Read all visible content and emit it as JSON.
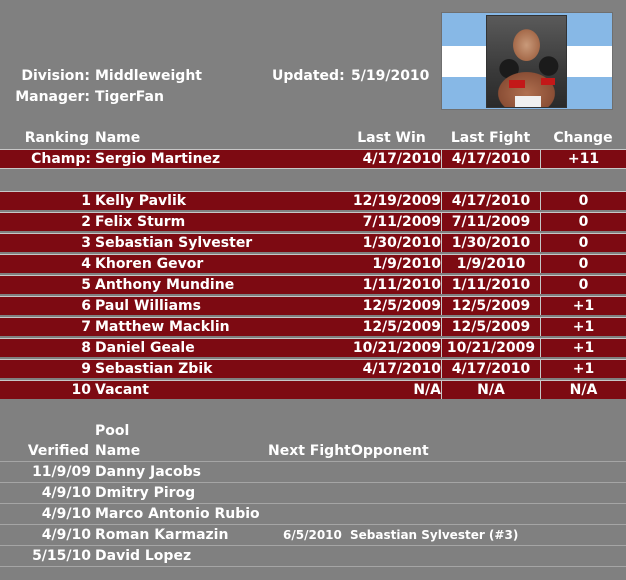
{
  "header": {
    "division_label": "Division:",
    "division_value": "Middleweight",
    "manager_label": "Manager:",
    "manager_value": "TigerFan",
    "updated_label": "Updated:",
    "updated_value": "5/19/2010",
    "flag_colors": {
      "blue": "#87b8e6",
      "white": "#ffffff"
    },
    "photo_icon": "boxer-photo"
  },
  "rankings": {
    "headers": {
      "rank": "Ranking",
      "name": "Name",
      "last_win": "Last Win",
      "last_fight": "Last Fight",
      "change": "Change"
    },
    "champ": {
      "rank": "Champ:",
      "name": "Sergio Martinez",
      "last_win": "4/17/2010",
      "last_fight": "4/17/2010",
      "change": "+11"
    },
    "rows": [
      {
        "rank": "1",
        "name": "Kelly Pavlik",
        "last_win": "12/19/2009",
        "last_fight": "4/17/2010",
        "change": "0"
      },
      {
        "rank": "2",
        "name": "Felix Sturm",
        "last_win": "7/11/2009",
        "last_fight": "7/11/2009",
        "change": "0"
      },
      {
        "rank": "3",
        "name": "Sebastian Sylvester",
        "last_win": "1/30/2010",
        "last_fight": "1/30/2010",
        "change": "0"
      },
      {
        "rank": "4",
        "name": "Khoren Gevor",
        "last_win": "1/9/2010",
        "last_fight": "1/9/2010",
        "change": "0"
      },
      {
        "rank": "5",
        "name": "Anthony Mundine",
        "last_win": "1/11/2010",
        "last_fight": "1/11/2010",
        "change": "0"
      },
      {
        "rank": "6",
        "name": "Paul Williams",
        "last_win": "12/5/2009",
        "last_fight": "12/5/2009",
        "change": "+1"
      },
      {
        "rank": "7",
        "name": "Matthew Macklin",
        "last_win": "12/5/2009",
        "last_fight": "12/5/2009",
        "change": "+1"
      },
      {
        "rank": "8",
        "name": "Daniel Geale",
        "last_win": "10/21/2009",
        "last_fight": "10/21/2009",
        "change": "+1"
      },
      {
        "rank": "9",
        "name": "Sebastian Zbik",
        "last_win": "4/17/2010",
        "last_fight": "4/17/2010",
        "change": "+1"
      },
      {
        "rank": "10",
        "name": "Vacant",
        "last_win": "N/A",
        "last_fight": "N/A",
        "change": "N/A"
      }
    ],
    "row_color": "#7d0a12"
  },
  "pool": {
    "headers": {
      "verified": "Verified",
      "pool": "Pool",
      "name": "Name",
      "next_fight": "Next Fight",
      "opponent": "Opponent"
    },
    "rows": [
      {
        "verified": "11/9/09",
        "name": "Danny Jacobs",
        "next_fight": "",
        "opponent": ""
      },
      {
        "verified": "4/9/10",
        "name": "Dmitry Pirog",
        "next_fight": "",
        "opponent": ""
      },
      {
        "verified": "4/9/10",
        "name": "Marco Antonio Rubio",
        "next_fight": "",
        "opponent": ""
      },
      {
        "verified": "4/9/10",
        "name": "Roman Karmazin",
        "next_fight": "6/5/2010",
        "opponent": "Sebastian Sylvester (#3)"
      },
      {
        "verified": "5/15/10",
        "name": "David Lopez",
        "next_fight": "",
        "opponent": ""
      }
    ]
  }
}
